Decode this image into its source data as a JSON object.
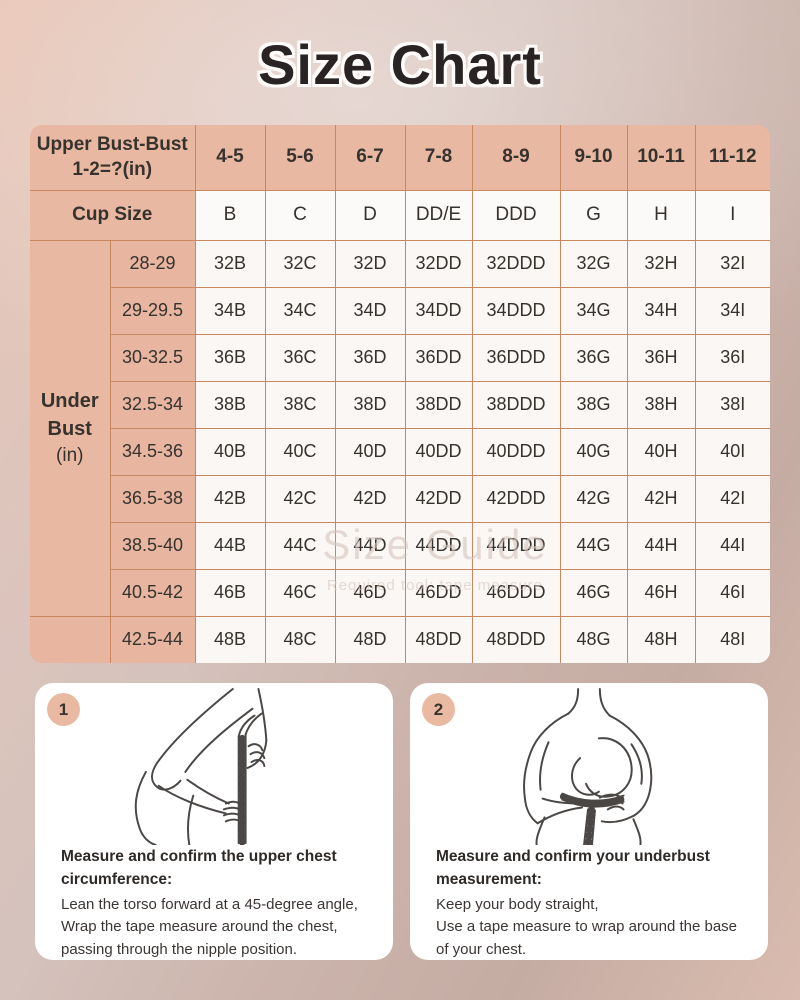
{
  "page": {
    "title": "Size Chart"
  },
  "table": {
    "corner_header": "Upper Bust-Bust\n1-2=?(in)",
    "diff_header_values": [
      "4-5",
      "5-6",
      "6-7",
      "7-8",
      "8-9",
      "9-10",
      "10-11",
      "11-12"
    ],
    "cup_row_label": "Cup Size",
    "cup_sizes": [
      "B",
      "C",
      "D",
      "DD/E",
      "DDD",
      "G",
      "H",
      "I"
    ],
    "underbust_label": "Under\nBust",
    "underbust_unit": "(in)",
    "rows": [
      {
        "range": "28-29",
        "sizes": [
          "32B",
          "32C",
          "32D",
          "32DD",
          "32DDD",
          "32G",
          "32H",
          "32I"
        ]
      },
      {
        "range": "29-29.5",
        "sizes": [
          "34B",
          "34C",
          "34D",
          "34DD",
          "34DDD",
          "34G",
          "34H",
          "34I"
        ]
      },
      {
        "range": "30-32.5",
        "sizes": [
          "36B",
          "36C",
          "36D",
          "36DD",
          "36DDD",
          "36G",
          "36H",
          "36I"
        ]
      },
      {
        "range": "32.5-34",
        "sizes": [
          "38B",
          "38C",
          "38D",
          "38DD",
          "38DDD",
          "38G",
          "38H",
          "38I"
        ]
      },
      {
        "range": "34.5-36",
        "sizes": [
          "40B",
          "40C",
          "40D",
          "40DD",
          "40DDD",
          "40G",
          "40H",
          "40I"
        ]
      },
      {
        "range": "36.5-38",
        "sizes": [
          "42B",
          "42C",
          "42D",
          "42DD",
          "42DDD",
          "42G",
          "42H",
          "42I"
        ]
      },
      {
        "range": "38.5-40",
        "sizes": [
          "44B",
          "44C",
          "44D",
          "44DD",
          "44DDD",
          "44G",
          "44H",
          "44I"
        ]
      },
      {
        "range": "40.5-42",
        "sizes": [
          "46B",
          "46C",
          "46D",
          "46DD",
          "46DDD",
          "46G",
          "46H",
          "46I"
        ]
      },
      {
        "range": "42.5-44",
        "sizes": [
          "48B",
          "48C",
          "48D",
          "48DD",
          "48DDD",
          "48G",
          "48H",
          "48I"
        ]
      }
    ],
    "watermark": {
      "line1": "Size Guide",
      "line2": "Required tool: tape measure"
    }
  },
  "instructions": [
    {
      "number": "1",
      "heading": "Measure and confirm the upper chest circumference:",
      "body": "Lean the torso forward at a 45-degree angle,\nWrap the tape measure around the chest,\npassing through the nipple position."
    },
    {
      "number": "2",
      "heading": "Measure and confirm your underbust measurement:",
      "body": "Keep your body straight,\nUse a tape measure to wrap around the base of your chest."
    }
  ],
  "colors": {
    "header_pink": "#e9b8a2",
    "cell_bg": "#faf7f5",
    "grid_line": "#c9875f",
    "card_bg": "#ffffff",
    "badge_bg": "#eab9a2",
    "title_color": "#2a2324",
    "text_dark": "#36322e"
  }
}
